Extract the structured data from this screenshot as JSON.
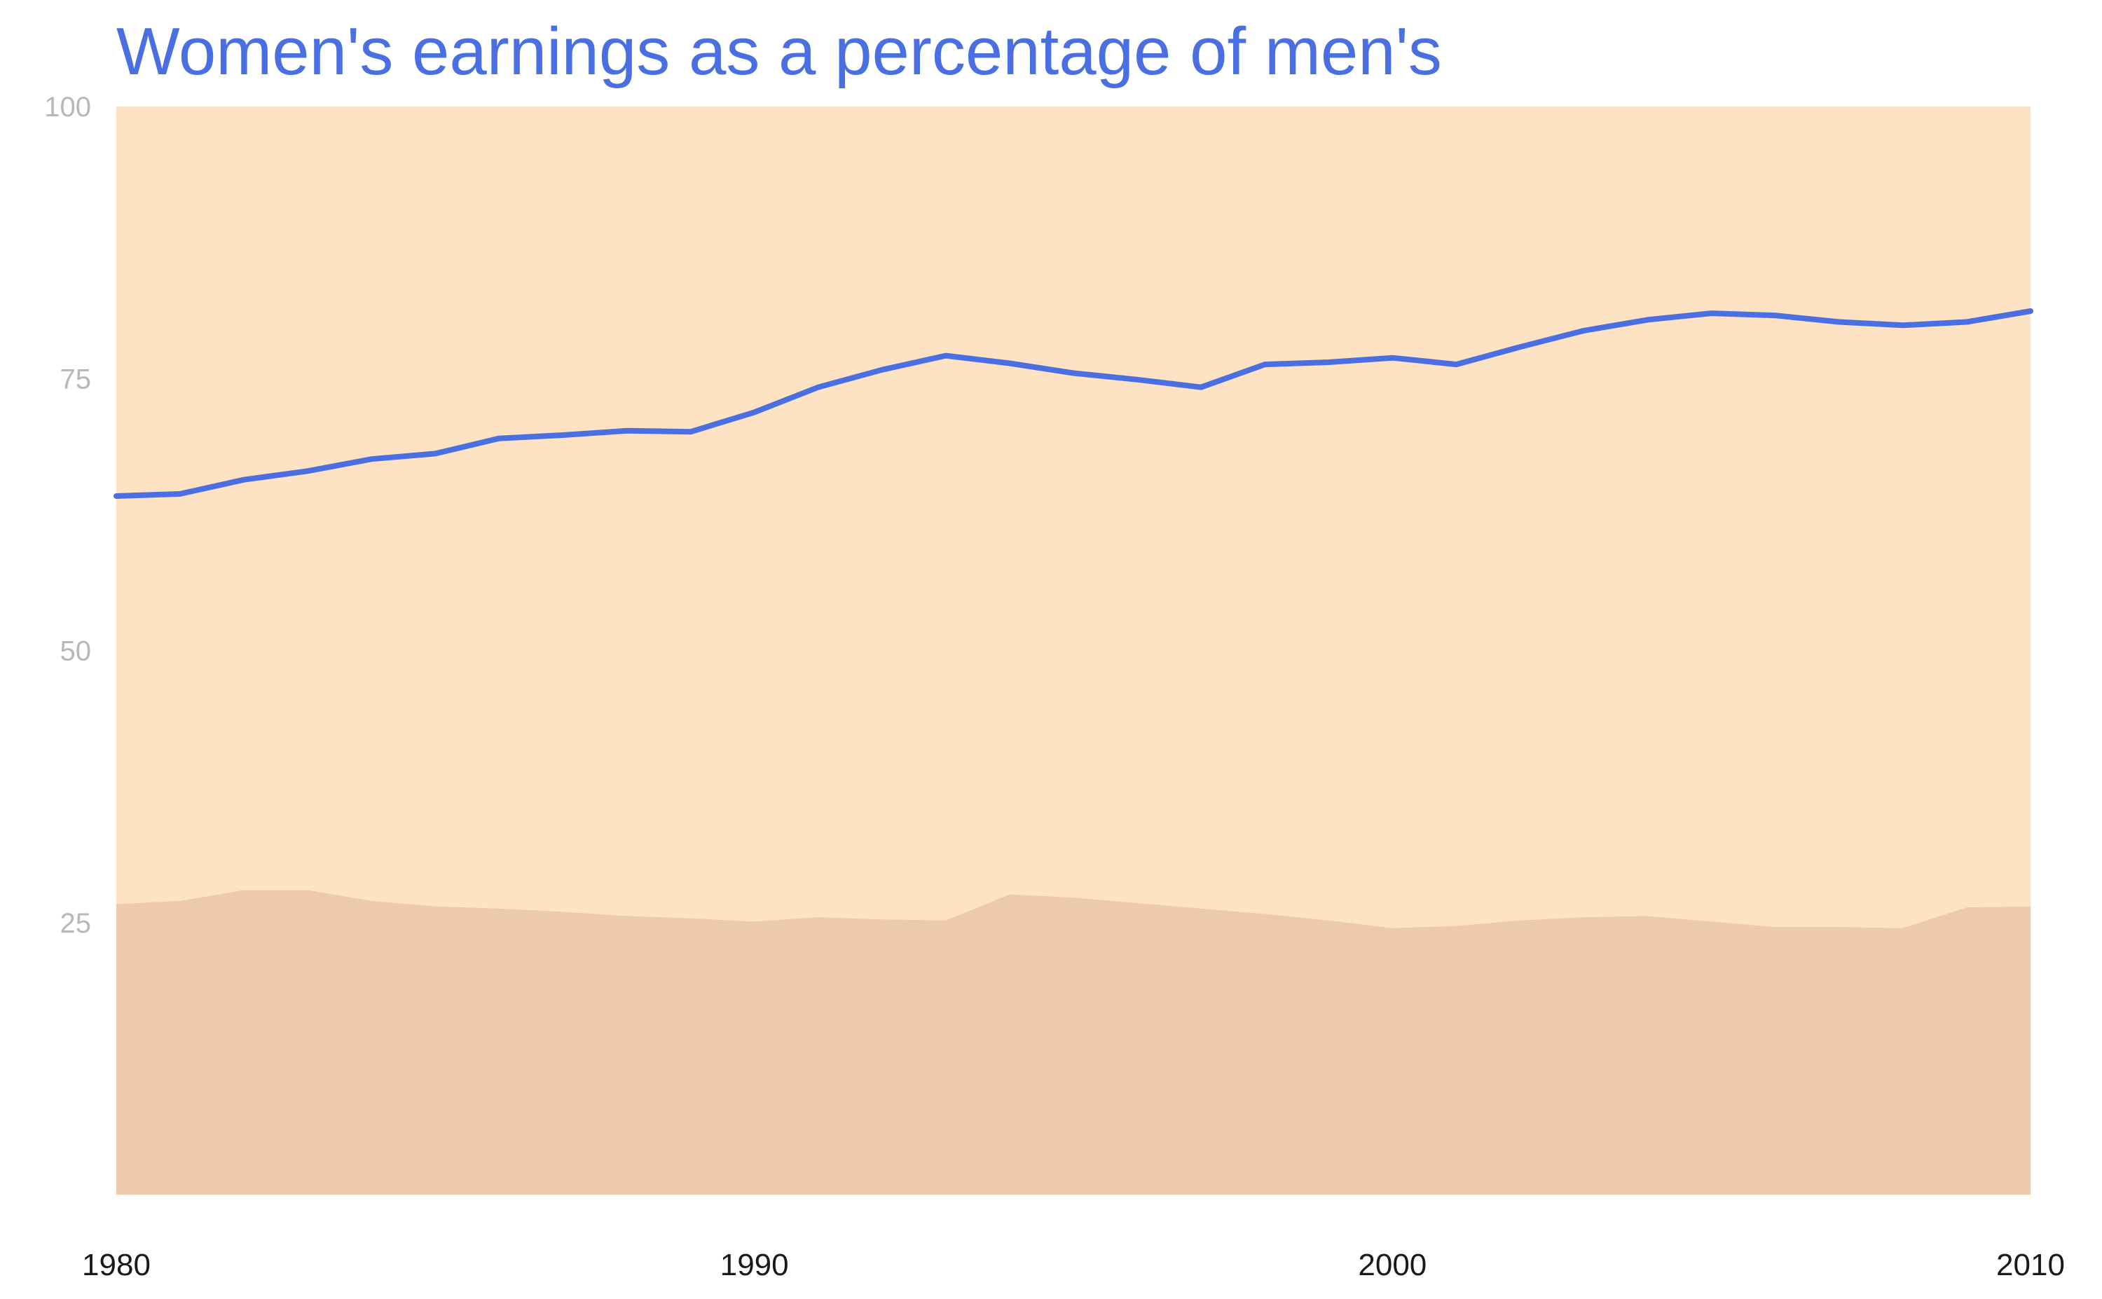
{
  "chart_data": {
    "type": "area",
    "title": "Women's earnings as a percentage of men's",
    "xlim": [
      1980,
      2010
    ],
    "ylim": [
      0,
      100
    ],
    "x_ticks": [
      "1980",
      "1990",
      "2000",
      "2010"
    ],
    "y_ticks": [
      "25",
      "50",
      "75",
      "100"
    ],
    "grid": false,
    "legend": "none",
    "x": [
      1980,
      1981,
      1982,
      1983,
      1984,
      1985,
      1986,
      1987,
      1988,
      1989,
      1990,
      1991,
      1992,
      1993,
      1994,
      1995,
      1996,
      1997,
      1998,
      1999,
      2000,
      2001,
      2002,
      2003,
      2004,
      2005,
      2006,
      2007,
      2008,
      2009,
      2010
    ],
    "series": [
      {
        "type": "area",
        "values": [
          26.7,
          27.0,
          28.0,
          28.0,
          27.0,
          26.5,
          26.3,
          26.0,
          25.6,
          25.4,
          25.1,
          25.5,
          25.3,
          25.2,
          27.6,
          27.3,
          26.8,
          26.3,
          25.8,
          25.2,
          24.5,
          24.7,
          25.2,
          25.5,
          25.6,
          25.1,
          24.6,
          24.6,
          24.5,
          26.4,
          26.5
        ],
        "color": "#edcaab"
      },
      {
        "type": "area",
        "values": [
          73.3,
          73.0,
          72.0,
          72.0,
          73.0,
          73.5,
          73.7,
          74.0,
          74.4,
          74.6,
          74.9,
          74.5,
          74.7,
          74.8,
          72.4,
          72.7,
          73.2,
          73.7,
          74.2,
          74.8,
          75.5,
          75.3,
          74.8,
          74.5,
          74.4,
          74.9,
          75.4,
          75.4,
          75.5,
          73.6,
          73.5
        ],
        "color": "#fde3c4"
      },
      {
        "type": "line",
        "values": [
          64.2,
          64.4,
          65.7,
          66.5,
          67.6,
          68.1,
          69.5,
          69.8,
          70.2,
          70.1,
          71.9,
          74.2,
          75.8,
          77.1,
          76.4,
          75.5,
          74.9,
          74.2,
          76.3,
          76.5,
          76.9,
          76.3,
          77.9,
          79.4,
          80.4,
          81.0,
          80.8,
          80.2,
          79.9,
          80.2,
          81.2
        ],
        "color": "#4a6fe3"
      }
    ]
  }
}
